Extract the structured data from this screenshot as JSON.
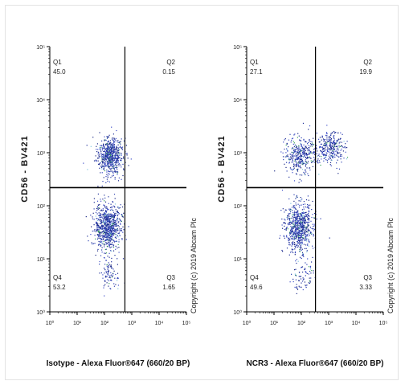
{
  "copyright": "Copyright (c) 2019 Abcam Plc",
  "chart_data": [
    {
      "type": "scatter",
      "title": "",
      "xlabel": "Isotype - Alexa Fluor®647 (660/20 BP)",
      "ylabel": "CD56 - BV421",
      "x_scale": "log",
      "y_scale": "log",
      "xlim": [
        1,
        100000
      ],
      "ylim": [
        1,
        100000
      ],
      "x_ticks": [
        "10⁰",
        "10¹",
        "10²",
        "10³",
        "10⁴",
        "10⁵"
      ],
      "y_ticks": [
        "10⁰",
        "10¹",
        "10²",
        "10³",
        "10⁴",
        "10⁵"
      ],
      "gate": {
        "x": 560,
        "y": 220
      },
      "quadrants": [
        {
          "name": "Q1",
          "position": "top-left",
          "percent": "45.0"
        },
        {
          "name": "Q2",
          "position": "top-right",
          "percent": "0.15"
        },
        {
          "name": "Q3",
          "position": "bottom-right",
          "percent": "1.65"
        },
        {
          "name": "Q4",
          "position": "bottom-left",
          "percent": "53.2"
        }
      ],
      "populations": [
        {
          "center_x": 150,
          "center_y": 900,
          "spread_x": 0.24,
          "spread_y": 0.17,
          "count": 650
        },
        {
          "center_x": 130,
          "center_y": 40,
          "spread_x": 0.24,
          "spread_y": 0.22,
          "count": 800
        },
        {
          "center_x": 150,
          "center_y": 5,
          "spread_x": 0.2,
          "spread_y": 0.18,
          "count": 90
        }
      ]
    },
    {
      "type": "scatter",
      "title": "",
      "xlabel": "NCR3 - Alexa Fluor®647 (660/20 BP)",
      "ylabel": "CD56 - BV421",
      "x_scale": "log",
      "y_scale": "log",
      "xlim": [
        1,
        100000
      ],
      "ylim": [
        1,
        100000
      ],
      "x_ticks": [
        "10⁰",
        "10¹",
        "10²",
        "10³",
        "10⁴",
        "10⁵"
      ],
      "y_ticks": [
        "10⁰",
        "10¹",
        "10²",
        "10³",
        "10⁴",
        "10⁵"
      ],
      "gate": {
        "x": 330,
        "y": 220
      },
      "quadrants": [
        {
          "name": "Q1",
          "position": "top-left",
          "percent": "27.1"
        },
        {
          "name": "Q2",
          "position": "top-right",
          "percent": "19.9"
        },
        {
          "name": "Q3",
          "position": "bottom-right",
          "percent": "3.33"
        },
        {
          "name": "Q4",
          "position": "bottom-left",
          "percent": "49.6"
        }
      ],
      "populations": [
        {
          "center_x": 90,
          "center_y": 900,
          "spread_x": 0.28,
          "spread_y": 0.17,
          "count": 380
        },
        {
          "center_x": 1100,
          "center_y": 1300,
          "spread_x": 0.26,
          "spread_y": 0.16,
          "count": 300
        },
        {
          "center_x": 80,
          "center_y": 40,
          "spread_x": 0.26,
          "spread_y": 0.22,
          "count": 720
        },
        {
          "center_x": 110,
          "center_y": 5,
          "spread_x": 0.2,
          "spread_y": 0.18,
          "count": 80
        }
      ]
    }
  ]
}
